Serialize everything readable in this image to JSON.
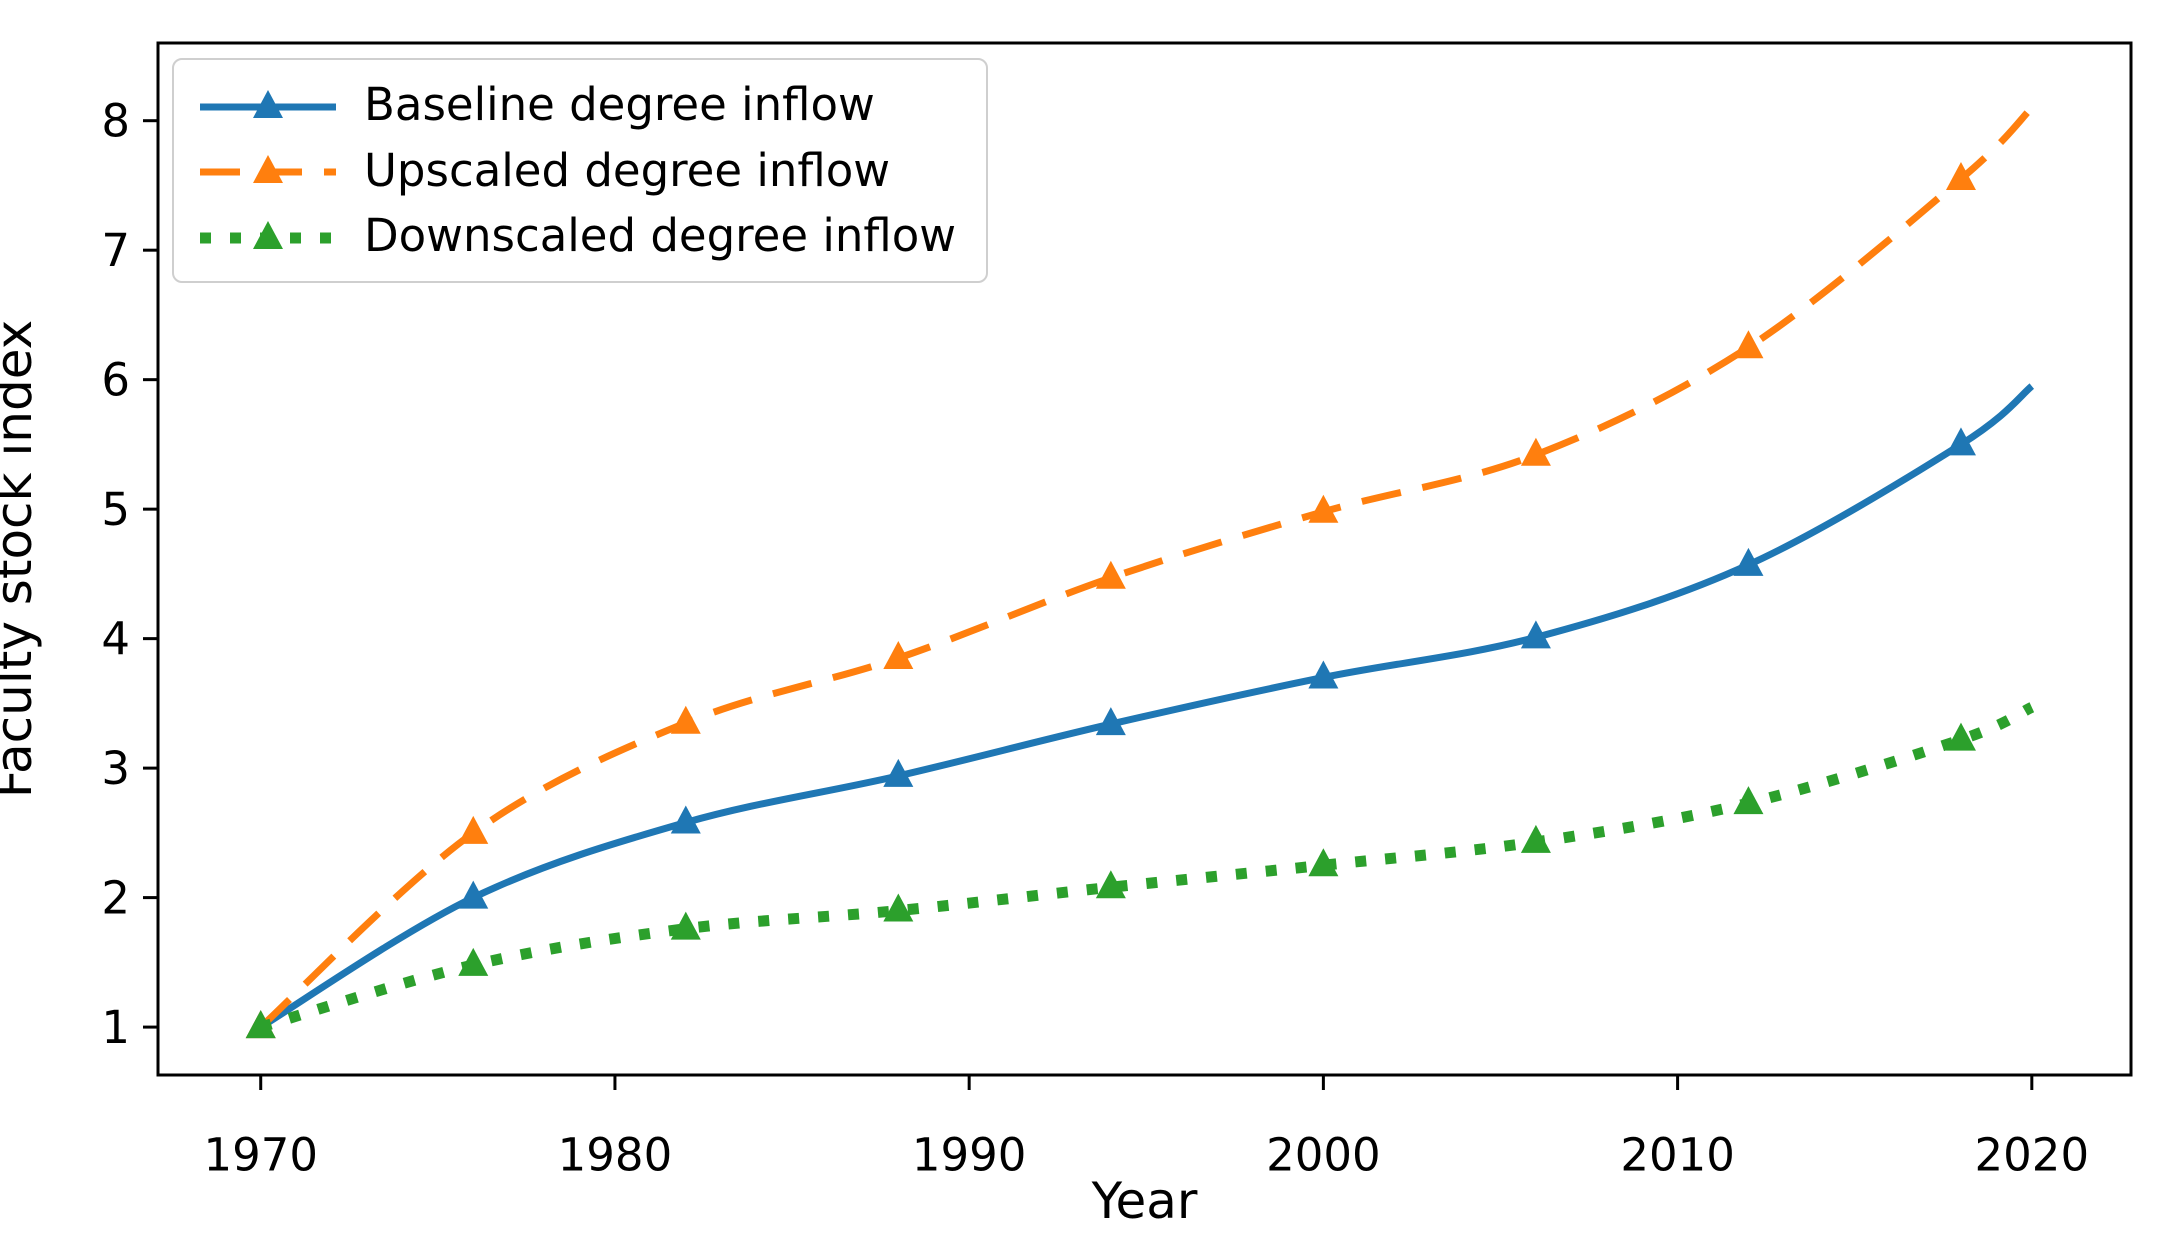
{
  "chart_data": {
    "type": "line",
    "title": "",
    "xlabel": "Year",
    "ylabel": "Faculty stock index",
    "x_ticks": [
      1970,
      1980,
      1990,
      2000,
      2010,
      2020
    ],
    "y_ticks": [
      1,
      2,
      3,
      4,
      5,
      6,
      7,
      8
    ],
    "xlim": [
      1967.1,
      2022.8
    ],
    "ylim": [
      0.63,
      8.6
    ],
    "grid": false,
    "legend_position": "upper-left",
    "x": [
      1970,
      1976,
      1982,
      1988,
      1994,
      2000,
      2006,
      2012,
      2018,
      2020
    ],
    "marker_years": [
      1970,
      1976,
      1982,
      1988,
      1994,
      2000,
      2006,
      2012,
      2018
    ],
    "series": [
      {
        "name": "Baseline degree inflow",
        "color": "#1f77b4",
        "linestyle": "solid",
        "marker": "triangle-up",
        "values": [
          1.0,
          2.0,
          2.58,
          2.94,
          3.34,
          3.7,
          4.01,
          4.57,
          5.5,
          5.95
        ]
      },
      {
        "name": "Upscaled degree inflow",
        "color": "#ff7f0e",
        "linestyle": "dashed",
        "marker": "triangle-up",
        "values": [
          1.0,
          2.5,
          3.35,
          3.85,
          4.47,
          4.98,
          5.42,
          6.25,
          7.55,
          8.1
        ]
      },
      {
        "name": "Downscaled degree inflow",
        "color": "#2ca02c",
        "linestyle": "dotted",
        "marker": "triangle-up",
        "values": [
          1.0,
          1.48,
          1.76,
          1.9,
          2.08,
          2.25,
          2.43,
          2.73,
          3.22,
          3.47
        ]
      }
    ]
  }
}
